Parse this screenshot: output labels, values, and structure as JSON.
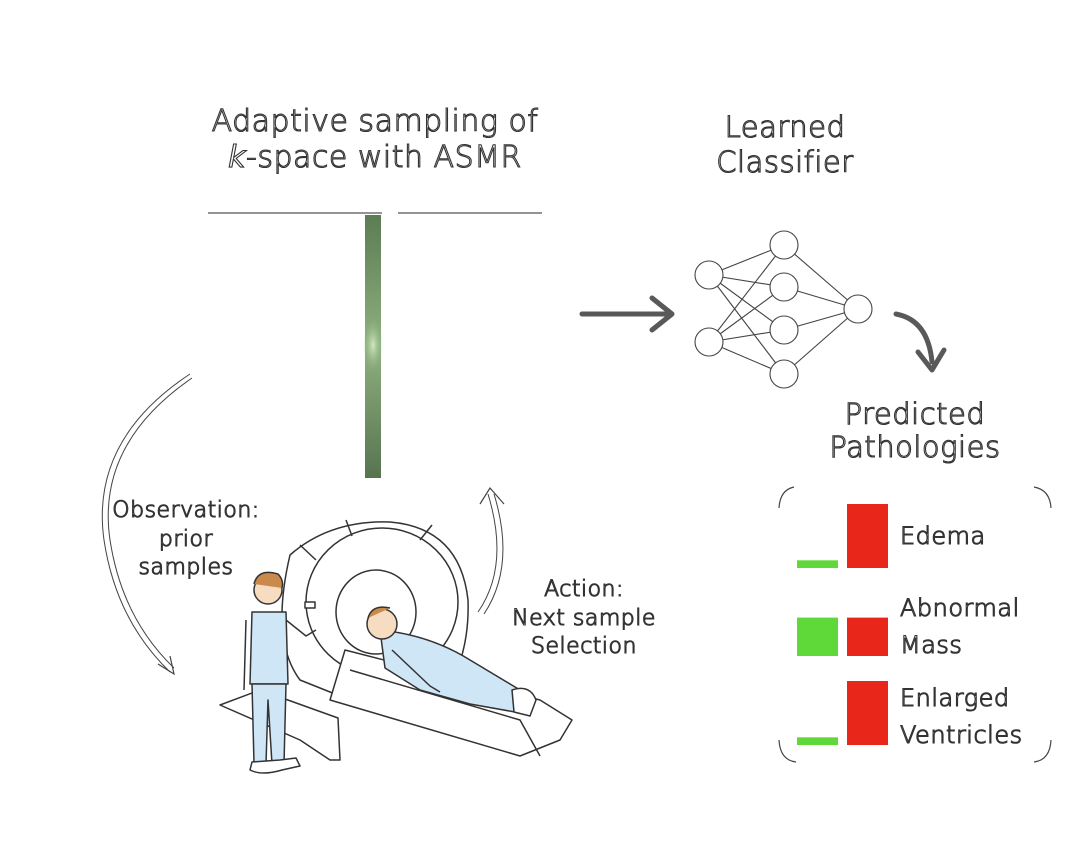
{
  "sampling": {
    "title_line1": "Adaptive sampling of",
    "title_k": "k",
    "title_line2_rest": "-space with ASMR"
  },
  "classifier": {
    "title_line1": "Learned",
    "title_line2": "Classifier"
  },
  "loop": {
    "observation": [
      "Observation:",
      "prior",
      "samples"
    ],
    "action": [
      "Action:",
      "Next sample",
      "Selection"
    ]
  },
  "pathologies": {
    "title_line1": "Predicted",
    "title_line2": "Pathologies",
    "items": [
      {
        "label_lines": [
          "Edema"
        ],
        "green": 0.12,
        "red": 1.0
      },
      {
        "label_lines": [
          "Abnormal",
          "Mass"
        ],
        "green": 0.6,
        "red": 0.6
      },
      {
        "label_lines": [
          "Enlarged",
          "Ventricles"
        ],
        "green": 0.12,
        "red": 1.0
      }
    ]
  },
  "colors": {
    "green": "#5fd93a",
    "red": "#e8261a",
    "arrow": "#595959",
    "kspace": "#6a8a5e"
  },
  "icons": [
    "right-arrow-icon",
    "curved-down-arrow-icon",
    "neural-network-icon",
    "mri-scanner-illustration"
  ]
}
